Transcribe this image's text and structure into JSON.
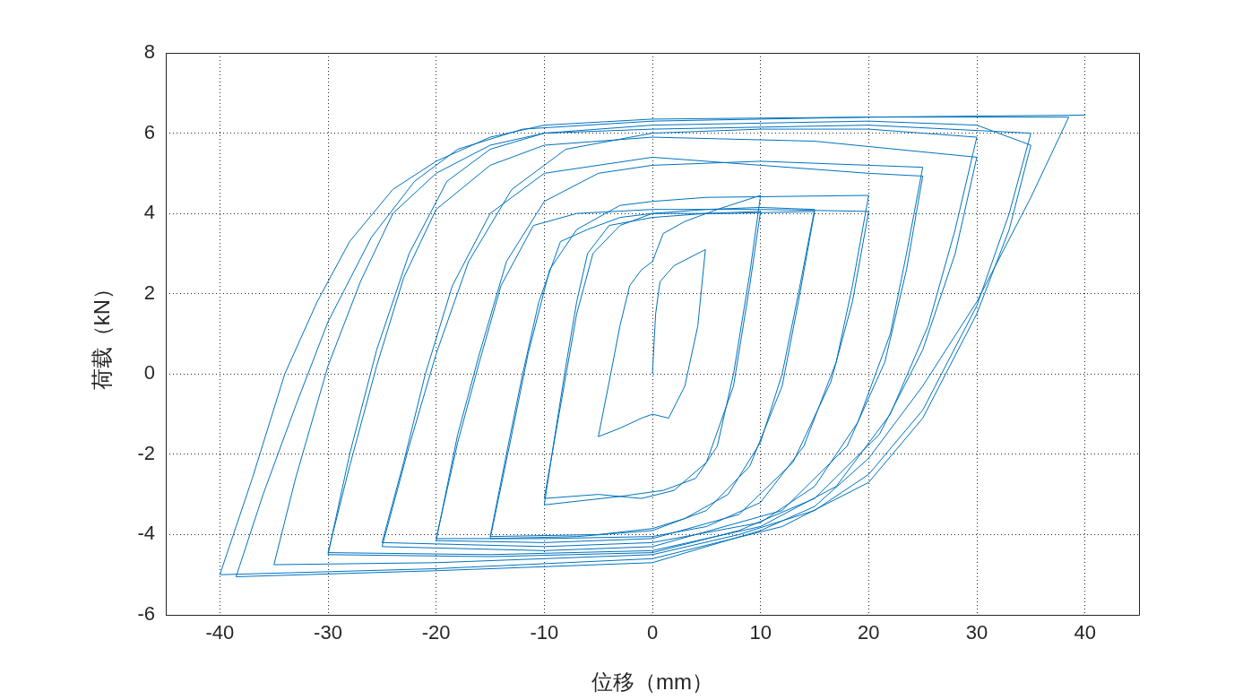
{
  "chart_data": {
    "type": "line",
    "xlabel": "位移（mm）",
    "ylabel": "荷载（kN）",
    "xlim": [
      -45,
      45
    ],
    "ylim": [
      -6,
      8
    ],
    "xticks": [
      -40,
      -30,
      -20,
      -10,
      0,
      10,
      20,
      30,
      40
    ],
    "yticks": [
      -6,
      -4,
      -2,
      0,
      2,
      4,
      6,
      8
    ],
    "grid": true,
    "legend": false,
    "marker": "none",
    "line_style": "solid",
    "series": [
      {
        "color": "#0072bd",
        "x": [
          0,
          0.3,
          0.7,
          2,
          4.9,
          4.2,
          3,
          1.5,
          0,
          -1,
          -3,
          -5,
          -4,
          -3,
          -2.1,
          -1,
          0,
          1,
          3,
          6,
          10,
          9,
          7.5,
          6,
          4,
          1,
          -3,
          -10,
          -9,
          -8,
          -7,
          -6,
          -4,
          0,
          5,
          10,
          9,
          7.5,
          5,
          2,
          -1,
          -5,
          -10,
          -8.5,
          -7,
          -5.5,
          -3,
          0,
          5,
          10,
          15,
          13.5,
          12,
          10,
          7,
          3,
          0,
          -5,
          -15,
          -13.5,
          -12,
          -10.5,
          -8.5,
          -6,
          -3,
          0,
          7,
          15,
          13.5,
          12,
          9,
          5,
          0,
          -7,
          -15,
          -13,
          -11.5,
          -9.5,
          -7,
          -3,
          0,
          5,
          20,
          18.5,
          17,
          14,
          10,
          5,
          0,
          -10,
          -20,
          -18,
          -16,
          -14,
          -11,
          -7,
          0,
          10,
          20,
          18.5,
          16.5,
          13,
          8,
          0,
          -10,
          -20,
          -18,
          -16,
          -13.5,
          -10,
          -5,
          0,
          10,
          20,
          25,
          23.5,
          22,
          19,
          15,
          10,
          0,
          -10,
          -25,
          -23,
          -21,
          -18.5,
          -15,
          -10,
          0,
          10,
          20,
          25,
          23.5,
          21.5,
          18,
          12,
          0,
          -10,
          -25,
          -22.5,
          -20,
          -17,
          -13,
          -8,
          0,
          10,
          20,
          30,
          28,
          25.5,
          22,
          17,
          10,
          0,
          -15,
          -30,
          -28,
          -25.5,
          -23,
          -20,
          -15,
          -10,
          0,
          15,
          30,
          28,
          25,
          21,
          15,
          8,
          0,
          -15,
          -30,
          -28,
          -25.5,
          -22.5,
          -19,
          -15,
          -10,
          0,
          20,
          35,
          33,
          30,
          25,
          20,
          15,
          8,
          0,
          -20,
          -35,
          -33,
          -30,
          -27,
          -24,
          -20,
          -15,
          -10,
          0,
          20,
          30,
          35,
          33,
          30,
          25,
          20,
          12,
          0,
          -20,
          -40,
          -37,
          -34,
          -31,
          -28,
          -24,
          -20,
          -15,
          -10,
          0,
          20,
          38.5,
          35,
          30,
          25,
          20,
          15,
          10,
          0,
          -20,
          -38.5,
          -36,
          -33,
          -30,
          -26,
          -22,
          -18,
          -12,
          0,
          20,
          40
        ],
        "values": [
          0,
          1.5,
          2.3,
          2.7,
          3.1,
          1.2,
          -0.3,
          -1.1,
          -1,
          -1.1,
          -1.35,
          -1.56,
          -0.2,
          1.2,
          2.2,
          2.6,
          2.8,
          3.5,
          3.8,
          4.1,
          4.45,
          2.5,
          0,
          -1.8,
          -2.6,
          -2.9,
          -3.05,
          -3.26,
          -1.5,
          0.2,
          1.8,
          3,
          3.7,
          3.9,
          4,
          4.05,
          2.2,
          -0.3,
          -2.2,
          -2.9,
          -3.1,
          -3,
          -3.1,
          -0.8,
          1.5,
          3,
          3.7,
          4,
          4.1,
          4.15,
          4.1,
          2,
          0,
          -1.7,
          -3,
          -3.6,
          -3.85,
          -4,
          -4.05,
          -2,
          0,
          1.8,
          3.3,
          3.6,
          3.9,
          4,
          4,
          4.05,
          1.8,
          -0.3,
          -2.3,
          -3.4,
          -3.9,
          -4.05,
          -4.1,
          -1.5,
          0.5,
          2.6,
          3.6,
          4.2,
          4.3,
          4.4,
          4.45,
          2.2,
          0.3,
          -1.8,
          -3.2,
          -3.8,
          -4.05,
          -4.1,
          -4.1,
          -1.7,
          0.3,
          2.2,
          3.7,
          4,
          4.1,
          4.1,
          4.05,
          1.8,
          -0.2,
          -2.2,
          -3.5,
          -4.1,
          -4.2,
          -4.15,
          -1.5,
          0.5,
          2.8,
          4.3,
          5,
          5.2,
          5.3,
          5.2,
          5.15,
          3,
          1,
          -1.2,
          -2.8,
          -3.7,
          -4.2,
          -4.3,
          -4.2,
          -2.2,
          0,
          2.2,
          4,
          5,
          5.4,
          5.2,
          5,
          4.93,
          2.6,
          0.3,
          -1.8,
          -3.4,
          -4.3,
          -4.4,
          -4.3,
          -1.8,
          0.5,
          2.8,
          4.6,
          5.6,
          6,
          6.1,
          6.1,
          5.9,
          3.6,
          1.2,
          -1,
          -2.8,
          -3.8,
          -4.4,
          -4.5,
          -4.45,
          -2.3,
          0.2,
          2.4,
          4.1,
          5.2,
          5.7,
          5.9,
          5.8,
          5.4,
          3,
          0.6,
          -1.5,
          -3.1,
          -3.9,
          -4.45,
          -4.55,
          -4.5,
          -2,
          0.6,
          3,
          4.8,
          5.6,
          6,
          6.1,
          6.2,
          6,
          4,
          1.7,
          -0.9,
          -2.5,
          -3.4,
          -4,
          -4.5,
          -4.7,
          -4.75,
          -2.6,
          0.2,
          2.3,
          4,
          5,
          5.7,
          6,
          6.2,
          6.3,
          6.2,
          5.7,
          3.6,
          1.5,
          -1.1,
          -2.7,
          -3.8,
          -4.6,
          -4.85,
          -5,
          -2.6,
          0,
          1.8,
          3.3,
          4.6,
          5.3,
          5.9,
          6.2,
          6.35,
          6.4,
          6.4,
          4.4,
          1.8,
          -0.3,
          -2.1,
          -3.3,
          -3.9,
          -4.7,
          -4.9,
          -5.05,
          -3,
          -0.8,
          1.3,
          3.4,
          4.8,
          5.6,
          6.1,
          6.3,
          6.4,
          6.45
        ]
      }
    ]
  }
}
